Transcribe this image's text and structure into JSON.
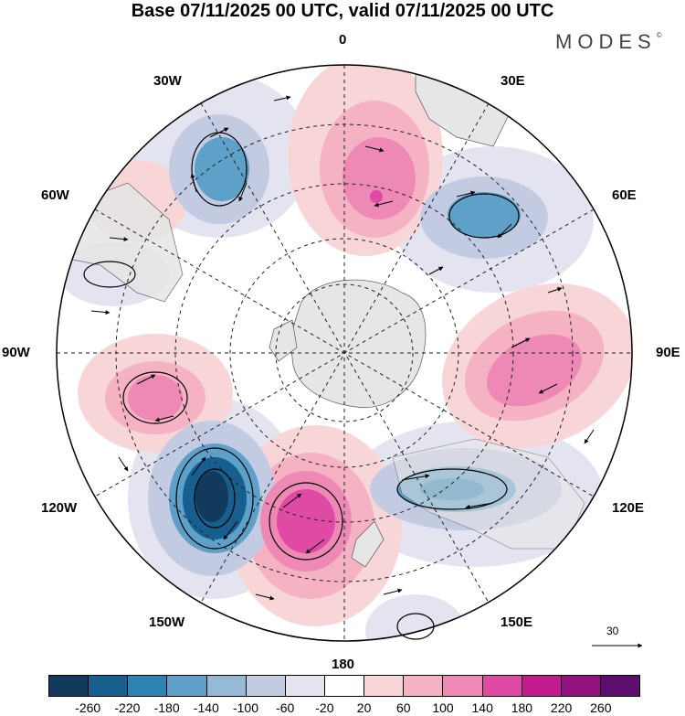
{
  "title": "Base 07/11/2025 00 UTC, valid 07/11/2025 00 UTC",
  "brand": "MODES",
  "brand_mark": "©",
  "longitude_labels": {
    "deg0": "0",
    "deg30e": "30E",
    "deg60e": "60E",
    "deg90e": "90E",
    "deg120e": "120E",
    "deg150e": "150E",
    "deg180": "180",
    "deg150w": "150W",
    "deg120w": "120W",
    "deg90w": "90W",
    "deg60w": "60W",
    "deg30w": "30W"
  },
  "vector_scale_label": "30",
  "colorbar": {
    "labels": [
      "-260",
      "-220",
      "-180",
      "-140",
      "-100",
      "-60",
      "-20",
      "20",
      "60",
      "100",
      "140",
      "180",
      "220",
      "260"
    ],
    "colors": [
      "#123a5c",
      "#175f8f",
      "#2f82b4",
      "#5da0c8",
      "#97b9d8",
      "#c3cbe3",
      "#e4e4f1",
      "#ffffff",
      "#f8d6d8",
      "#f4b2c2",
      "#ee88b5",
      "#df4aa4",
      "#c21b8f",
      "#92137f",
      "#5e0e6f"
    ]
  },
  "colors": {
    "land": "#e6e6e6",
    "ocean_neutral": "#ffffff",
    "pos_light": "#f8d6d8",
    "pos_mid": "#f4b2c2",
    "pos_strong": "#ee88b5",
    "pos_max": "#df4aa4",
    "neg_light": "#e4e4f1",
    "neg_mid": "#c3cbe3",
    "neg_strong": "#5da0c8",
    "neg_max": "#175f8f"
  }
}
